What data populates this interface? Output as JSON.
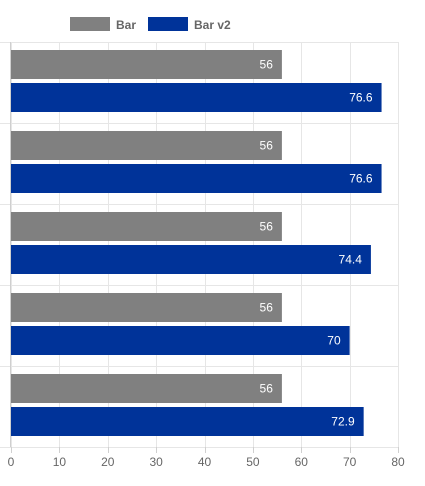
{
  "chart_data": {
    "type": "bar",
    "orientation": "horizontal",
    "categories": [
      "",
      "",
      "",
      "",
      ""
    ],
    "series": [
      {
        "name": "Bar",
        "color": "#808080",
        "values": [
          56,
          56,
          56,
          56,
          56
        ]
      },
      {
        "name": "Bar v2",
        "color": "#003399",
        "values": [
          76.6,
          76.6,
          74.4,
          70,
          72.9
        ]
      }
    ],
    "xlim": [
      0,
      80
    ],
    "xticks": [
      0,
      10,
      20,
      30,
      40,
      50,
      60,
      70,
      80
    ],
    "grid": true,
    "legend_position": "top",
    "data_labels": true
  }
}
